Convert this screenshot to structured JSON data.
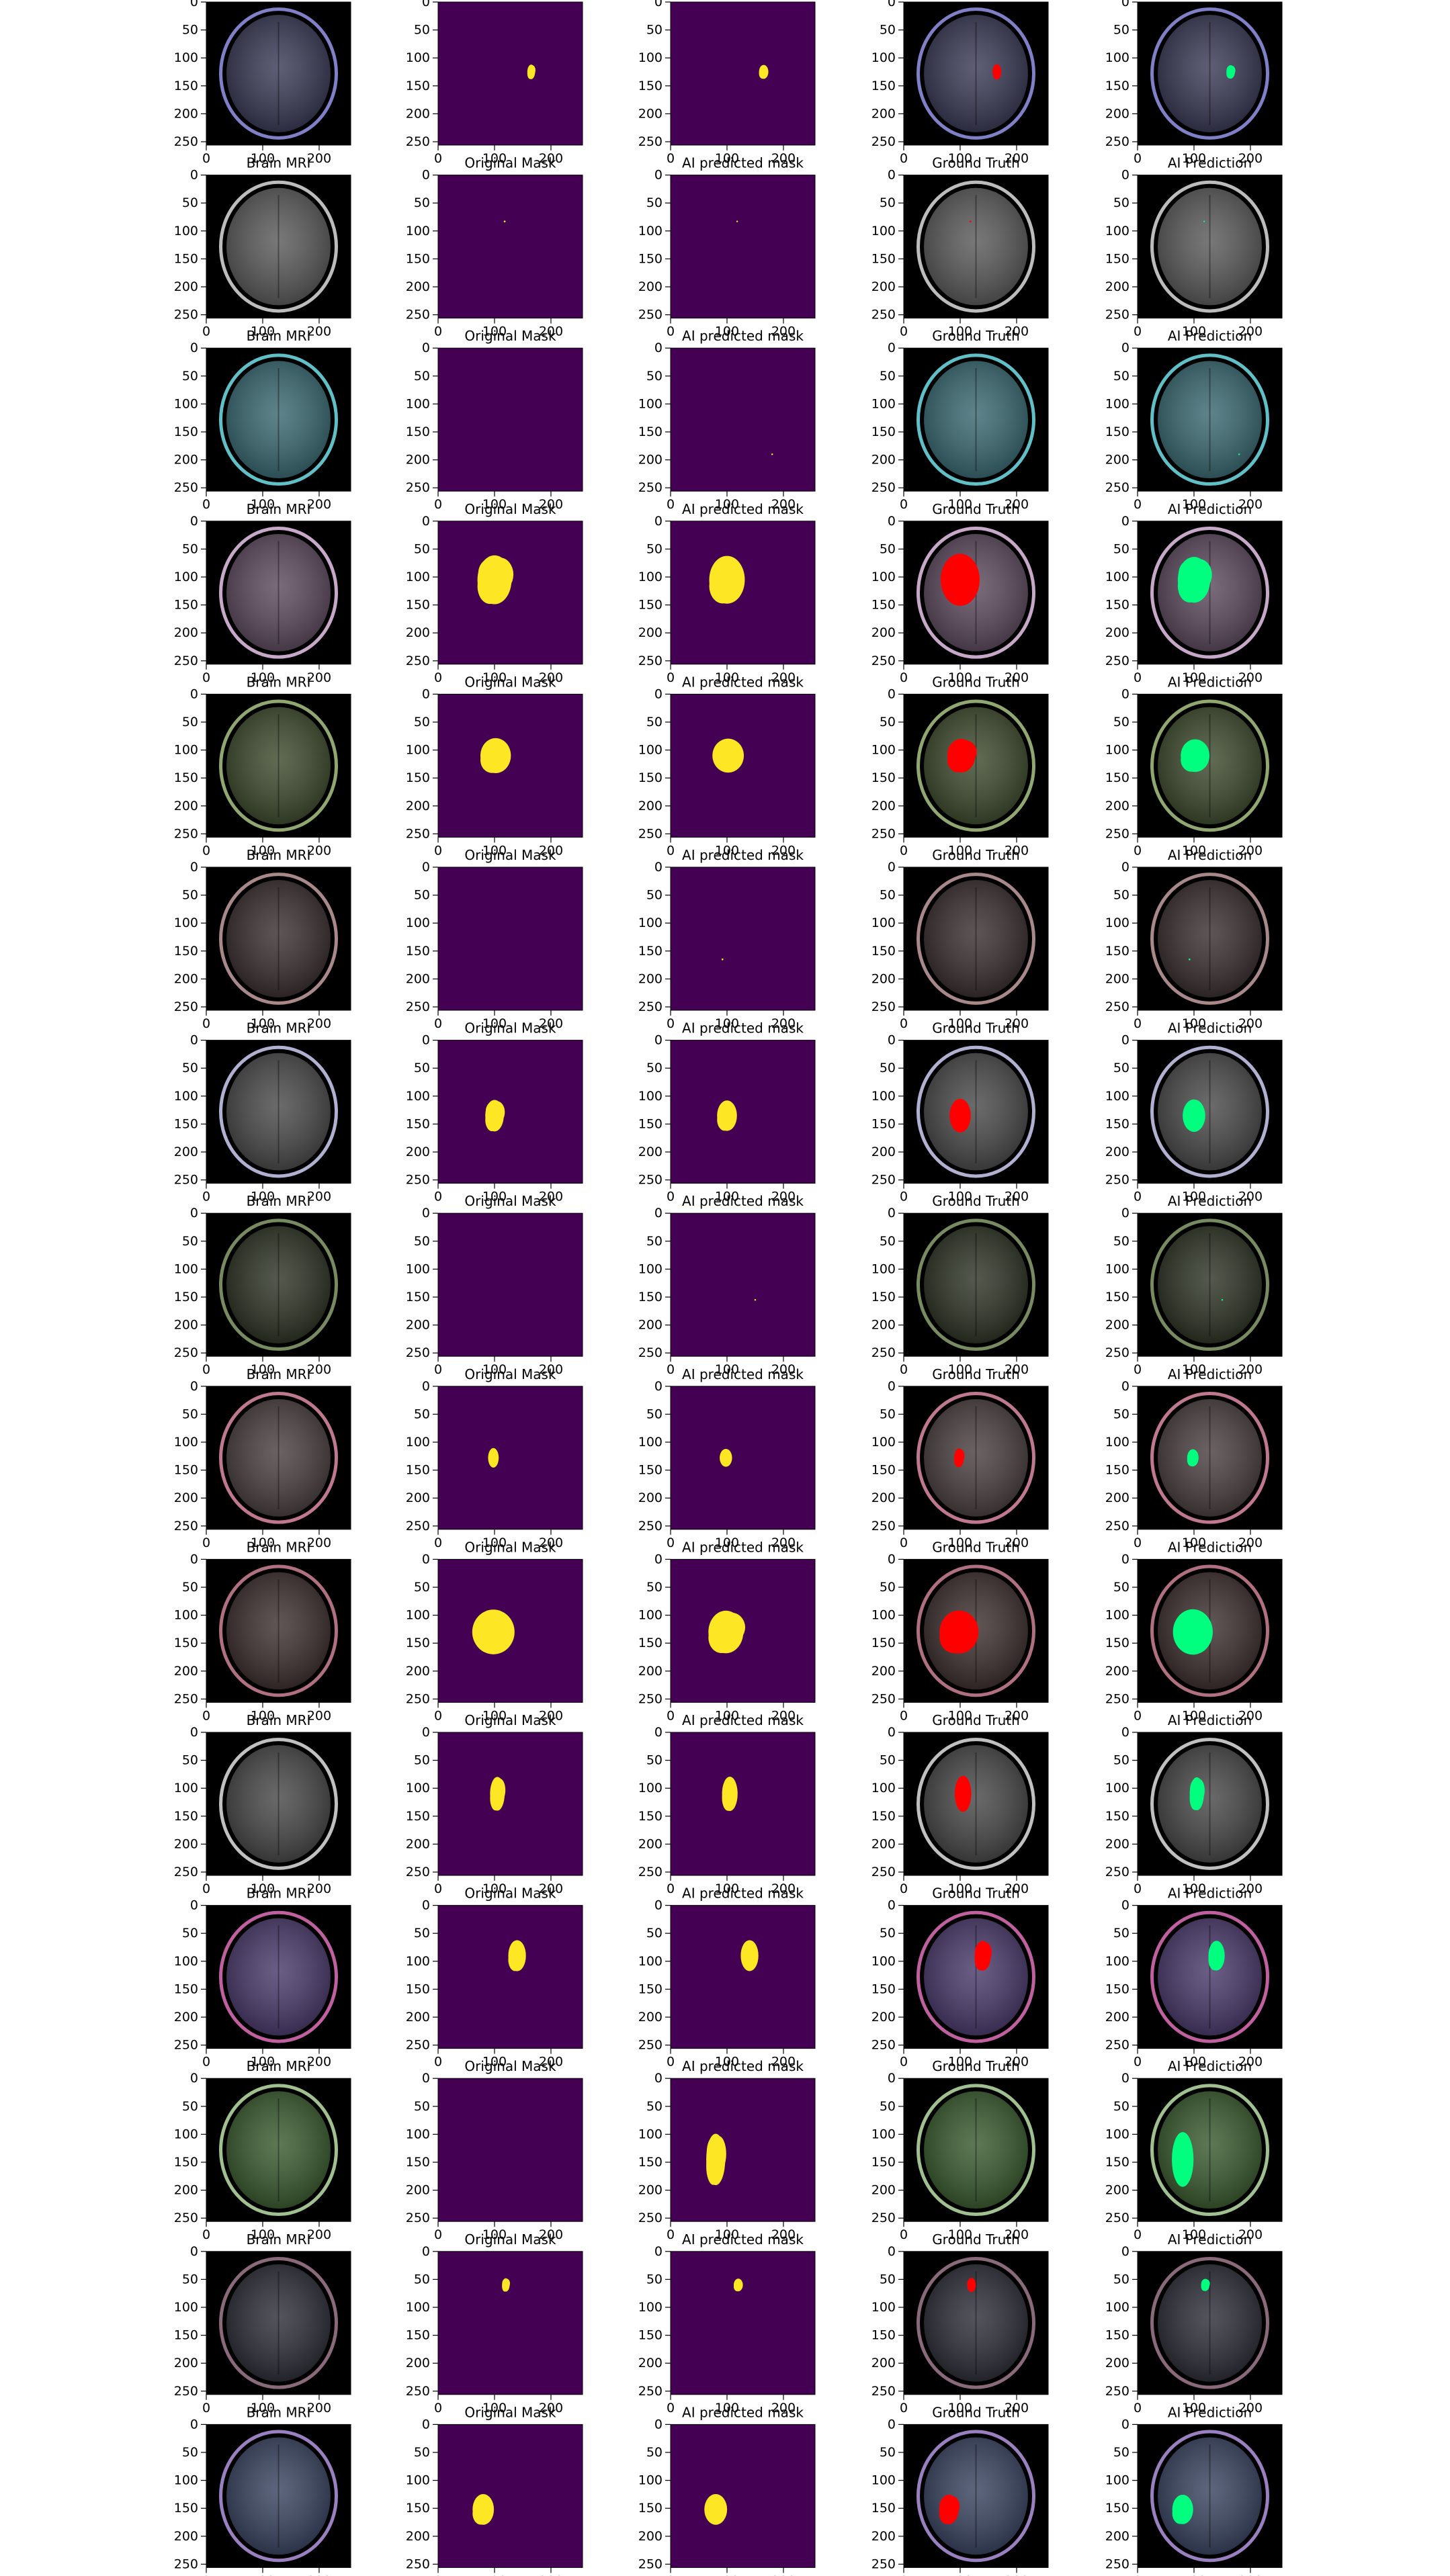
{
  "chart_data": {
    "type": "image-grid",
    "rows": 15,
    "columns": 5,
    "column_titles": [
      "Brain MRI",
      "Original Mask",
      "AI predicted mask",
      "Ground Truth",
      "AI Prediction"
    ],
    "axis_ticks": [
      0,
      50,
      100,
      150,
      200,
      250
    ],
    "x_tick_labels": [
      "0",
      "100",
      "200"
    ],
    "y_tick_labels": [
      "0",
      "50",
      "100",
      "150",
      "200",
      "250"
    ],
    "xlim": [
      0,
      256
    ],
    "ylim": [
      256,
      0
    ],
    "colors": {
      "mask_background": "#440154",
      "mask_foreground": "#fde725",
      "ground_truth_overlay": "#ff0000",
      "ai_prediction_overlay": "#00ff7f",
      "mri_background": "#000000"
    },
    "samples": [
      {
        "tumor_center": [
          165,
          125
        ],
        "truth_size": [
          16,
          28
        ],
        "pred_size": [
          18,
          26
        ],
        "mri_tint": "#3a3a55",
        "ring_color": "#8080c8"
      },
      {
        "tumor_center": [
          118,
          83
        ],
        "truth_size": [
          3,
          3
        ],
        "pred_size": [
          1,
          1
        ],
        "mri_tint": "#5a5a5a",
        "ring_color": "#bcbcbc"
      },
      {
        "tumor_center": [
          180,
          190
        ],
        "truth_size": [
          0,
          0
        ],
        "pred_size": [
          2,
          2
        ],
        "mri_tint": "#3a6870",
        "ring_color": "#60c0c8"
      },
      {
        "tumor_center": [
          100,
          105
        ],
        "truth_size": [
          72,
          95
        ],
        "pred_size": [
          70,
          90
        ],
        "mri_tint": "#5c4a5c",
        "ring_color": "#c8a8c8"
      },
      {
        "tumor_center": [
          102,
          110
        ],
        "truth_size": [
          60,
          66
        ],
        "pred_size": [
          58,
          62
        ],
        "mri_tint": "#3e4a2e",
        "ring_color": "#90a870"
      },
      {
        "tumor_center": [
          92,
          165
        ],
        "truth_size": [
          0,
          0
        ],
        "pred_size": [
          3,
          3
        ],
        "mri_tint": "#3a3030",
        "ring_color": "#a88888"
      },
      {
        "tumor_center": [
          100,
          135
        ],
        "truth_size": [
          40,
          62
        ],
        "pred_size": [
          40,
          58
        ],
        "mri_tint": "#4a4a4a",
        "ring_color": "#b0b0d0"
      },
      {
        "tumor_center": [
          150,
          155
        ],
        "truth_size": [
          0,
          0
        ],
        "pred_size": [
          2,
          2
        ],
        "mri_tint": "#2e3426",
        "ring_color": "#788a60"
      },
      {
        "tumor_center": [
          98,
          128
        ],
        "truth_size": [
          20,
          36
        ],
        "pred_size": [
          22,
          32
        ],
        "mri_tint": "#4a4040",
        "ring_color": "#c07890"
      },
      {
        "tumor_center": [
          98,
          130
        ],
        "truth_size": [
          75,
          80
        ],
        "pred_size": [
          72,
          82
        ],
        "mri_tint": "#3e3030",
        "ring_color": "#b07080"
      },
      {
        "tumor_center": [
          105,
          110
        ],
        "truth_size": [
          30,
          65
        ],
        "pred_size": [
          30,
          64
        ],
        "mri_tint": "#484848",
        "ring_color": "#c0c0c0"
      },
      {
        "tumor_center": [
          140,
          90
        ],
        "truth_size": [
          34,
          58
        ],
        "pred_size": [
          32,
          56
        ],
        "mri_tint": "#4a3a6a",
        "ring_color": "#c060a0"
      },
      {
        "tumor_center": [
          80,
          145
        ],
        "truth_size": [
          0,
          0
        ],
        "pred_size": [
          40,
          100
        ],
        "mri_tint": "#3a5a30",
        "ring_color": "#a0c090"
      },
      {
        "tumor_center": [
          120,
          60
        ],
        "truth_size": [
          16,
          26
        ],
        "pred_size": [
          18,
          24
        ],
        "mri_tint": "#2e2e38",
        "ring_color": "#8a6a7a"
      },
      {
        "tumor_center": [
          80,
          152
        ],
        "truth_size": [
          42,
          58
        ],
        "pred_size": [
          42,
          56
        ],
        "mri_tint": "#3a4460",
        "ring_color": "#9a80c0"
      }
    ]
  }
}
